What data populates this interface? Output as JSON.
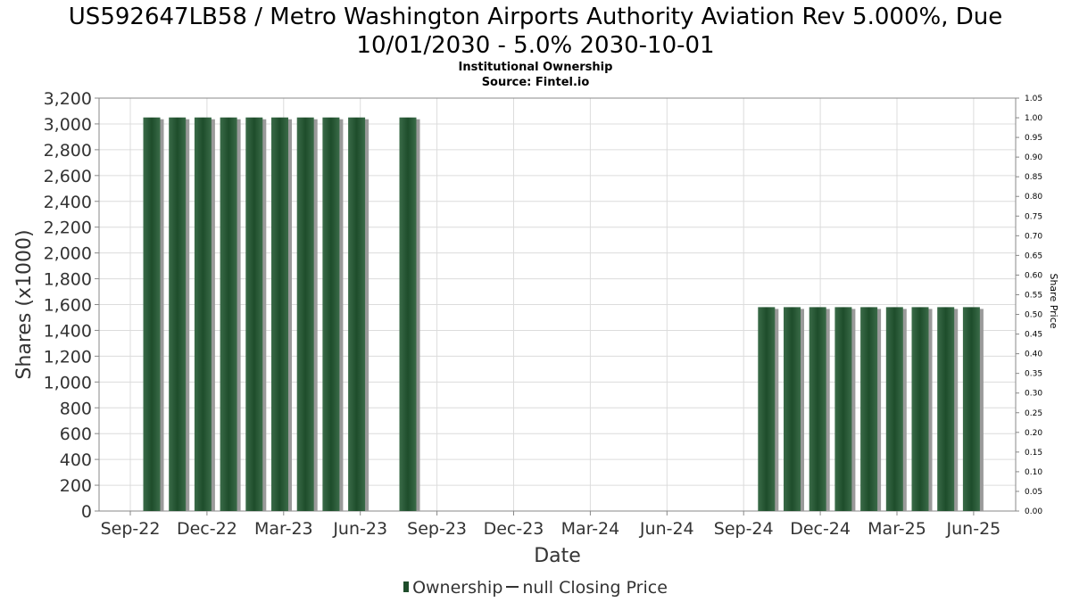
{
  "title_line1": "US592647LB58 / Metro Washington Airports Authority Aviation Rev 5.000%, Due",
  "title_line2": "10/01/2030 - 5.0% 2030-10-01",
  "subtitle_line1": "Institutional Ownership",
  "subtitle_line2": "Source: Fintel.io",
  "legend": {
    "ownership": "Ownership",
    "price": "null Closing Price"
  },
  "colors": {
    "bar": "#1e4d2b",
    "bar_highlight": "#3a6b48",
    "bar_shadow": "#9a9a9a",
    "grid": "#dcdcdc"
  },
  "chart_data": {
    "type": "bar",
    "xlabel": "Date",
    "ylabel": "Shares (x1000)",
    "y2label": "Share Price",
    "ylim": [
      0,
      3200
    ],
    "y2lim": [
      0,
      1.05
    ],
    "yticks": [
      "0",
      "200",
      "400",
      "600",
      "800",
      "1,000",
      "1,200",
      "1,400",
      "1,600",
      "1,800",
      "2,000",
      "2,200",
      "2,400",
      "2,600",
      "2,800",
      "3,000",
      "3,200"
    ],
    "y2ticks": [
      "0.00",
      "0.05",
      "0.10",
      "0.15",
      "0.20",
      "0.25",
      "0.30",
      "0.35",
      "0.40",
      "0.45",
      "0.50",
      "0.55",
      "0.60",
      "0.65",
      "0.70",
      "0.75",
      "0.80",
      "0.85",
      "0.90",
      "0.95",
      "1.00",
      "1.05"
    ],
    "xticks": [
      "Sep-22",
      "Dec-22",
      "Mar-23",
      "Jun-23",
      "Sep-23",
      "Dec-23",
      "Mar-24",
      "Jun-24",
      "Sep-24",
      "Dec-24",
      "Mar-25",
      "Jun-25"
    ],
    "grid": true,
    "legend_position": "bottom",
    "series": [
      {
        "name": "Ownership",
        "values": [
          3050,
          3050,
          3050,
          3050,
          3050,
          3050,
          3050,
          3050,
          3050,
          0,
          3050,
          0,
          0,
          0,
          0,
          0,
          0,
          0,
          0,
          0,
          0,
          0,
          0,
          0,
          1580,
          1580,
          1580,
          1580,
          1580,
          1580,
          1580,
          1580,
          1580
        ]
      }
    ]
  }
}
